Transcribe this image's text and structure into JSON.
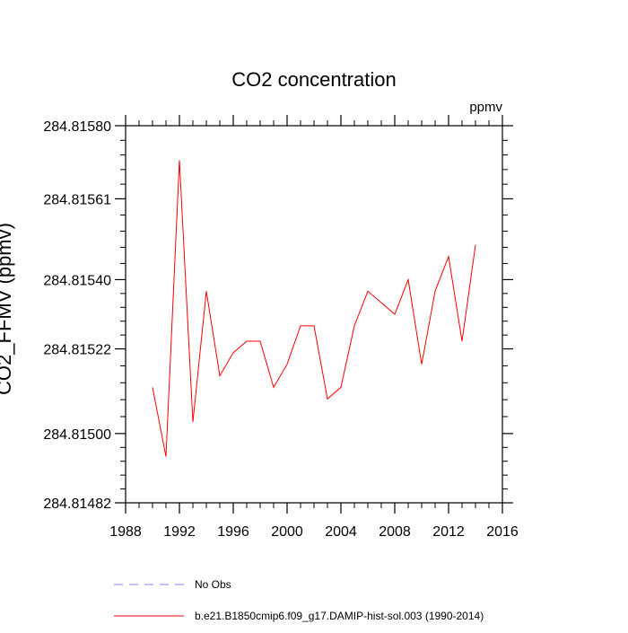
{
  "chart_data": {
    "type": "line",
    "title": "CO2 concentration",
    "units": "ppmv",
    "ylabel": "CO2_FFMV  (ppmv)",
    "xlabel": "",
    "xlim": [
      1988,
      2016
    ],
    "ylim": [
      284.81482,
      284.8158
    ],
    "x_ticks": [
      1988,
      1992,
      1996,
      2000,
      2004,
      2008,
      2012,
      2016
    ],
    "x_tick_labels": [
      "1988",
      "1992",
      "1996",
      "2000",
      "2004",
      "2008",
      "2012",
      "2016"
    ],
    "y_ticks": [
      284.81482,
      284.815,
      284.81522,
      284.8154,
      284.81561,
      284.8158
    ],
    "y_tick_labels": [
      "284.81482",
      "284.81500",
      "284.81522",
      "284.81540",
      "284.81561",
      "284.81580"
    ],
    "grid": false,
    "legend_position": "bottom",
    "series": [
      {
        "name": "b.e21.B1850cmip6.f09_g17.DAMIP-hist-sol.003 (1990-2014)",
        "color": "#ff0000",
        "line_style": "solid",
        "x": [
          1990,
          1991,
          1992,
          1993,
          1994,
          1995,
          1996,
          1997,
          1998,
          1999,
          2000,
          2001,
          2002,
          2003,
          2004,
          2005,
          2006,
          2007,
          2008,
          2009,
          2010,
          2011,
          2012,
          2013,
          2014
        ],
        "values": [
          284.81512,
          284.81494,
          284.81571,
          284.81503,
          284.81537,
          284.81515,
          284.81521,
          284.81524,
          284.81524,
          284.81512,
          284.81518,
          284.81528,
          284.81528,
          284.81509,
          284.81512,
          284.81528,
          284.81537,
          284.81534,
          284.81531,
          284.8154,
          284.81518,
          284.81537,
          284.81546,
          284.81524,
          284.81549
        ]
      }
    ],
    "legend": [
      {
        "label": "No Obs",
        "color": "#8080ff",
        "line_style": "dashed"
      },
      {
        "label": "b.e21.B1850cmip6.f09_g17.DAMIP-hist-sol.003 (1990-2014)",
        "color": "#ff0000",
        "line_style": "solid"
      }
    ]
  }
}
